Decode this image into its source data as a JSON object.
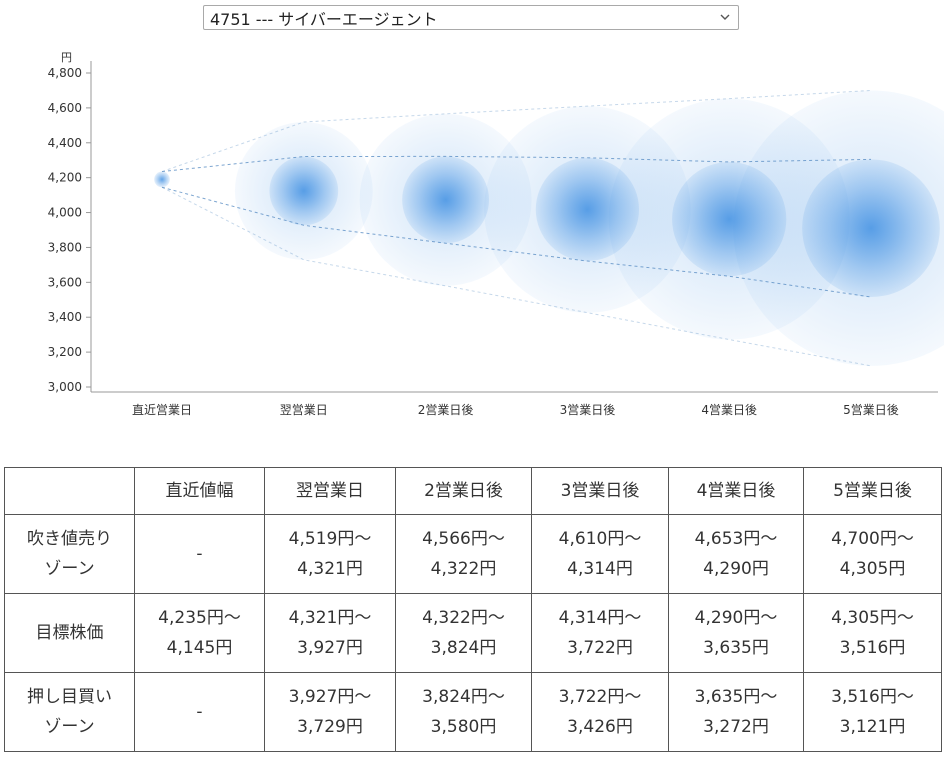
{
  "stock_selector": {
    "selected": "4751 --- サイバーエージェント"
  },
  "chart_data": {
    "type": "bubble-forecast",
    "y_unit": "円",
    "ylim": [
      3000,
      4800
    ],
    "yticks": [
      3000,
      3200,
      3400,
      3600,
      3800,
      4000,
      4200,
      4400,
      4600,
      4800
    ],
    "ytick_labels": [
      "3,000",
      "3,200",
      "3,400",
      "3,600",
      "3,800",
      "4,000",
      "4,200",
      "4,400",
      "4,600",
      "4,800"
    ],
    "categories": [
      "直近営業日",
      "翌営業日",
      "2営業日後",
      "3営業日後",
      "4営業日後",
      "5営業日後"
    ],
    "points": [
      {
        "center": 4190,
        "inner": [
          4145,
          4235
        ],
        "outer": [
          4145,
          4235
        ]
      },
      {
        "center": 4124,
        "inner": [
          3927,
          4321
        ],
        "outer": [
          3729,
          4519
        ]
      },
      {
        "center": 4073,
        "inner": [
          3824,
          4322
        ],
        "outer": [
          3580,
          4566
        ]
      },
      {
        "center": 4018,
        "inner": [
          3722,
          4314
        ],
        "outer": [
          3426,
          4610
        ]
      },
      {
        "center": 3963,
        "inner": [
          3635,
          4290
        ],
        "outer": [
          3272,
          4653
        ]
      },
      {
        "center": 3910,
        "inner": [
          3516,
          4305
        ],
        "outer": [
          3121,
          4700
        ]
      }
    ],
    "colors": {
      "bubble": "#2f86e0",
      "guide": "#5b8fc4",
      "axis": "#999999"
    },
    "grid": false
  },
  "table": {
    "headers": [
      "",
      "直近値幅",
      "翌営業日",
      "2営業日後",
      "3営業日後",
      "4営業日後",
      "5営業日後"
    ],
    "rows": [
      {
        "label": "吹き値売り\nゾーン",
        "cells": [
          "-",
          "4,519円～\n4,321円",
          "4,566円～\n4,322円",
          "4,610円～\n4,314円",
          "4,653円～\n4,290円",
          "4,700円～\n4,305円"
        ]
      },
      {
        "label": "目標株価",
        "cells": [
          "4,235円～\n4,145円",
          "4,321円～\n3,927円",
          "4,322円～\n3,824円",
          "4,314円～\n3,722円",
          "4,290円～\n3,635円",
          "4,305円～\n3,516円"
        ]
      },
      {
        "label": "押し目買い\nゾーン",
        "cells": [
          "-",
          "3,927円～\n3,729円",
          "3,824円～\n3,580円",
          "3,722円～\n3,426円",
          "3,635円～\n3,272円",
          "3,516円～\n3,121円"
        ]
      }
    ]
  }
}
